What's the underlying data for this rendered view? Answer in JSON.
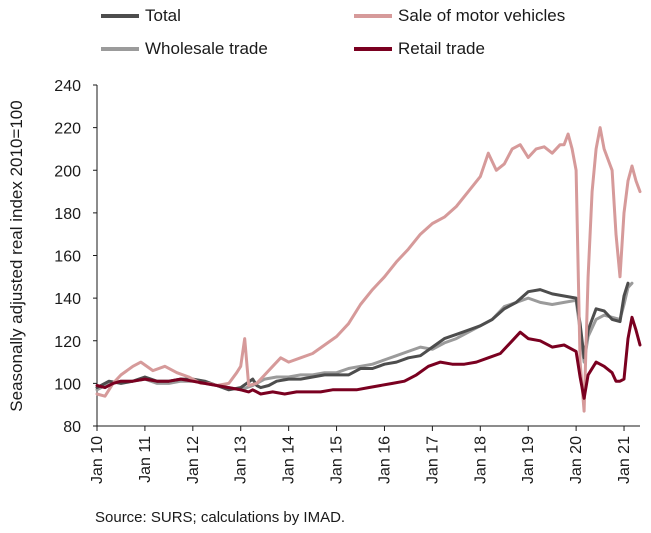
{
  "chart_data": {
    "type": "line",
    "title": "",
    "ylabel": "Seasonally adjusted real index 2010=100",
    "xlabel": "",
    "ylim": [
      80,
      240
    ],
    "yticks": [
      80,
      100,
      120,
      140,
      160,
      180,
      200,
      220,
      240
    ],
    "x_range": [
      "Jan 10",
      "Apr 21"
    ],
    "xticks": [
      "Jan 10",
      "Jan 11",
      "Jan 12",
      "Jan 13",
      "Jan 14",
      "Jan 15",
      "Jan 16",
      "Jan 17",
      "Jan 18",
      "Jan 19",
      "Jan 20",
      "Jan 21"
    ],
    "grid": false,
    "legend_position": "top",
    "source": "Source: SURS; calculations by IMAD.",
    "series": [
      {
        "name": "Total",
        "color": "#4d4d4d",
        "points": [
          [
            0,
            98
          ],
          [
            3,
            101
          ],
          [
            6,
            100
          ],
          [
            9,
            101
          ],
          [
            12,
            103
          ],
          [
            15,
            101
          ],
          [
            18,
            101
          ],
          [
            21,
            102
          ],
          [
            24,
            102
          ],
          [
            27,
            101
          ],
          [
            30,
            99
          ],
          [
            33,
            97
          ],
          [
            36,
            98
          ],
          [
            39,
            102
          ],
          [
            40,
            99
          ],
          [
            41,
            98
          ],
          [
            43,
            99
          ],
          [
            45,
            101
          ],
          [
            48,
            102
          ],
          [
            51,
            102
          ],
          [
            54,
            103
          ],
          [
            57,
            104
          ],
          [
            60,
            104
          ],
          [
            63,
            104
          ],
          [
            66,
            107
          ],
          [
            69,
            107
          ],
          [
            72,
            109
          ],
          [
            75,
            110
          ],
          [
            78,
            112
          ],
          [
            81,
            113
          ],
          [
            84,
            117
          ],
          [
            87,
            121
          ],
          [
            90,
            123
          ],
          [
            93,
            125
          ],
          [
            96,
            127
          ],
          [
            99,
            130
          ],
          [
            102,
            135
          ],
          [
            105,
            138
          ],
          [
            108,
            143
          ],
          [
            111,
            144
          ],
          [
            114,
            142
          ],
          [
            117,
            141
          ],
          [
            120,
            140
          ],
          [
            121,
            128
          ],
          [
            122,
            112
          ],
          [
            123,
            125
          ],
          [
            125,
            135
          ],
          [
            127,
            134
          ],
          [
            129,
            130
          ],
          [
            131,
            129
          ],
          [
            132,
            141
          ],
          [
            133,
            147
          ]
        ]
      },
      {
        "name": "Sale of motor vehicles",
        "color": "#d69a9a",
        "points": [
          [
            0,
            95
          ],
          [
            2,
            94
          ],
          [
            4,
            100
          ],
          [
            6,
            104
          ],
          [
            9,
            108
          ],
          [
            11,
            110
          ],
          [
            14,
            106
          ],
          [
            17,
            108
          ],
          [
            20,
            105
          ],
          [
            23,
            103
          ],
          [
            26,
            100
          ],
          [
            28,
            100
          ],
          [
            30,
            99
          ],
          [
            33,
            100
          ],
          [
            35,
            105
          ],
          [
            36,
            108
          ],
          [
            37,
            121
          ],
          [
            38,
            99
          ],
          [
            40,
            100
          ],
          [
            42,
            104
          ],
          [
            44,
            108
          ],
          [
            46,
            112
          ],
          [
            48,
            110
          ],
          [
            51,
            112
          ],
          [
            54,
            114
          ],
          [
            57,
            118
          ],
          [
            60,
            122
          ],
          [
            63,
            128
          ],
          [
            66,
            137
          ],
          [
            69,
            144
          ],
          [
            72,
            150
          ],
          [
            75,
            157
          ],
          [
            78,
            163
          ],
          [
            81,
            170
          ],
          [
            84,
            175
          ],
          [
            87,
            178
          ],
          [
            90,
            183
          ],
          [
            93,
            190
          ],
          [
            96,
            197
          ],
          [
            98,
            208
          ],
          [
            100,
            200
          ],
          [
            102,
            203
          ],
          [
            104,
            210
          ],
          [
            106,
            212
          ],
          [
            108,
            206
          ],
          [
            110,
            210
          ],
          [
            112,
            211
          ],
          [
            114,
            208
          ],
          [
            116,
            212
          ],
          [
            117,
            212
          ],
          [
            118,
            217
          ],
          [
            119,
            210
          ],
          [
            120,
            200
          ],
          [
            121,
            110
          ],
          [
            122,
            87
          ],
          [
            123,
            150
          ],
          [
            124,
            190
          ],
          [
            125,
            210
          ],
          [
            126,
            220
          ],
          [
            127,
            210
          ],
          [
            128,
            205
          ],
          [
            129,
            200
          ],
          [
            130,
            170
          ],
          [
            131,
            150
          ],
          [
            132,
            180
          ],
          [
            133,
            195
          ],
          [
            134,
            202
          ],
          [
            135,
            195
          ],
          [
            136,
            190
          ]
        ]
      },
      {
        "name": "Wholesale trade",
        "color": "#9b9b9b",
        "points": [
          [
            0,
            97
          ],
          [
            3,
            100
          ],
          [
            6,
            101
          ],
          [
            9,
            101
          ],
          [
            12,
            102
          ],
          [
            15,
            100
          ],
          [
            18,
            100
          ],
          [
            21,
            101
          ],
          [
            24,
            101
          ],
          [
            27,
            100
          ],
          [
            30,
            99
          ],
          [
            33,
            98
          ],
          [
            36,
            97
          ],
          [
            39,
            99
          ],
          [
            42,
            102
          ],
          [
            45,
            103
          ],
          [
            48,
            103
          ],
          [
            51,
            104
          ],
          [
            54,
            104
          ],
          [
            57,
            105
          ],
          [
            60,
            105
          ],
          [
            63,
            107
          ],
          [
            66,
            108
          ],
          [
            69,
            109
          ],
          [
            72,
            111
          ],
          [
            75,
            113
          ],
          [
            78,
            115
          ],
          [
            81,
            117
          ],
          [
            84,
            116
          ],
          [
            87,
            119
          ],
          [
            90,
            121
          ],
          [
            93,
            124
          ],
          [
            96,
            127
          ],
          [
            99,
            130
          ],
          [
            102,
            136
          ],
          [
            105,
            138
          ],
          [
            108,
            140
          ],
          [
            111,
            138
          ],
          [
            114,
            137
          ],
          [
            117,
            138
          ],
          [
            120,
            139
          ],
          [
            121,
            125
          ],
          [
            122,
            110
          ],
          [
            123,
            122
          ],
          [
            125,
            130
          ],
          [
            127,
            132
          ],
          [
            129,
            131
          ],
          [
            131,
            130
          ],
          [
            132,
            137
          ],
          [
            133,
            145
          ],
          [
            134,
            147
          ]
        ]
      },
      {
        "name": "Retail trade",
        "color": "#7a0020",
        "points": [
          [
            0,
            99
          ],
          [
            2,
            98
          ],
          [
            4,
            100
          ],
          [
            6,
            101
          ],
          [
            9,
            101
          ],
          [
            12,
            102
          ],
          [
            15,
            101
          ],
          [
            18,
            101
          ],
          [
            21,
            102
          ],
          [
            24,
            101
          ],
          [
            27,
            100
          ],
          [
            30,
            99
          ],
          [
            33,
            98
          ],
          [
            36,
            97
          ],
          [
            38,
            96
          ],
          [
            39,
            97
          ],
          [
            41,
            95
          ],
          [
            44,
            96
          ],
          [
            47,
            95
          ],
          [
            50,
            96
          ],
          [
            53,
            96
          ],
          [
            56,
            96
          ],
          [
            59,
            97
          ],
          [
            62,
            97
          ],
          [
            65,
            97
          ],
          [
            68,
            98
          ],
          [
            71,
            99
          ],
          [
            74,
            100
          ],
          [
            77,
            101
          ],
          [
            80,
            104
          ],
          [
            83,
            108
          ],
          [
            86,
            110
          ],
          [
            89,
            109
          ],
          [
            92,
            109
          ],
          [
            95,
            110
          ],
          [
            98,
            112
          ],
          [
            101,
            114
          ],
          [
            104,
            120
          ],
          [
            106,
            124
          ],
          [
            108,
            121
          ],
          [
            111,
            120
          ],
          [
            114,
            117
          ],
          [
            117,
            118
          ],
          [
            119,
            116
          ],
          [
            120,
            115
          ],
          [
            121,
            103
          ],
          [
            122,
            93
          ],
          [
            123,
            104
          ],
          [
            125,
            110
          ],
          [
            127,
            108
          ],
          [
            129,
            105
          ],
          [
            130,
            101
          ],
          [
            131,
            101
          ],
          [
            132,
            102
          ],
          [
            133,
            121
          ],
          [
            134,
            131
          ],
          [
            135,
            125
          ],
          [
            136,
            118
          ]
        ]
      }
    ]
  }
}
